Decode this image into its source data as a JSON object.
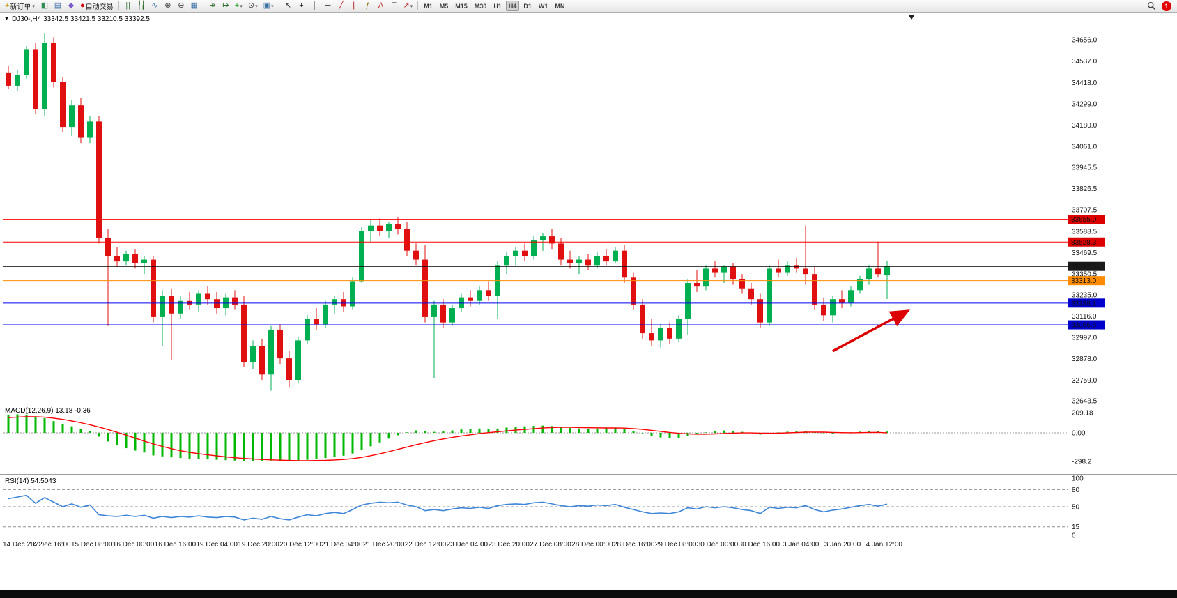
{
  "toolbar": {
    "groups": [
      {
        "items": [
          {
            "name": "new-order-button",
            "icon": "new-order-icon",
            "glyph": "+",
            "color": "#c79100",
            "label": "新订单",
            "dropdown": true
          },
          {
            "name": "charts-button",
            "icon": "chart-window-icon",
            "glyph": "◧",
            "color": "#2e8b57"
          },
          {
            "name": "profiles-button",
            "icon": "profiles-icon",
            "glyph": "▤",
            "color": "#3a6ea5"
          },
          {
            "name": "metaeditor-button",
            "icon": "metaeditor-icon",
            "glyph": "◆",
            "color": "#7b5cc6"
          },
          {
            "name": "autotrading-button",
            "icon": "autotrading-icon",
            "glyph": "●",
            "color": "#d40000",
            "label": "自动交易"
          }
        ]
      },
      {
        "items": [
          {
            "name": "bar-chart-button",
            "icon": "bar-chart-icon",
            "glyph": "|||",
            "color": "#4a7d4a"
          },
          {
            "name": "candlestick-chart-button",
            "icon": "candlestick-icon",
            "glyph": "╿╽",
            "color": "#2f6e2f"
          },
          {
            "name": "line-chart-button",
            "icon": "line-chart-icon",
            "glyph": "∿",
            "color": "#3a6ea5"
          },
          {
            "name": "zoom-in-button",
            "icon": "zoom-in-icon",
            "glyph": "⊕",
            "color": "#444444"
          },
          {
            "name": "zoom-out-button",
            "icon": "zoom-out-icon",
            "glyph": "⊖",
            "color": "#444444"
          },
          {
            "name": "tile-windows-button",
            "icon": "tile-windows-icon",
            "glyph": "▦",
            "color": "#3a6ea5"
          }
        ]
      },
      {
        "items": [
          {
            "name": "auto-scroll-button",
            "icon": "auto-scroll-icon",
            "glyph": "↠",
            "color": "#2f6e2f"
          },
          {
            "name": "chart-shift-button",
            "icon": "chart-shift-icon",
            "glyph": "↦",
            "color": "#2f6e2f"
          },
          {
            "name": "indicators-button",
            "icon": "indicators-icon",
            "glyph": "+",
            "color": "#0a9a0a",
            "dropdown": true
          },
          {
            "name": "periods-button",
            "icon": "clock-icon",
            "glyph": "⊙",
            "color": "#444444",
            "dropdown": true
          },
          {
            "name": "templates-button",
            "icon": "templates-icon",
            "glyph": "▣",
            "color": "#3a6ea5",
            "dropdown": true
          }
        ]
      },
      {
        "items": [
          {
            "name": "cursor-button",
            "icon": "cursor-icon",
            "glyph": "↖",
            "color": "#222222"
          },
          {
            "name": "crosshair-button",
            "icon": "crosshair-icon",
            "glyph": "+",
            "color": "#222222"
          },
          {
            "name": "vertical-line-button",
            "icon": "vertical-line-icon",
            "glyph": "│",
            "color": "#222222"
          },
          {
            "name": "horizontal-line-button",
            "icon": "horizontal-line-icon",
            "glyph": "─",
            "color": "#222222"
          },
          {
            "name": "trendline-button",
            "icon": "trendline-icon",
            "glyph": "╱",
            "color": "#bb2222"
          },
          {
            "name": "channel-button",
            "icon": "channel-icon",
            "glyph": "∥",
            "color": "#bb2222"
          },
          {
            "name": "fibonacci-button",
            "icon": "fibonacci-icon",
            "glyph": "ƒ",
            "color": "#8a6d00"
          },
          {
            "name": "text-button",
            "icon": "text-icon",
            "glyph": "A",
            "color": "#bb2222"
          },
          {
            "name": "text-label-button",
            "icon": "text-label-icon",
            "glyph": "T",
            "color": "#222222"
          },
          {
            "name": "arrows-button",
            "icon": "arrow-tools-icon",
            "glyph": "↗",
            "color": "#bb2222",
            "dropdown": true
          }
        ]
      },
      {
        "timeframes": true
      },
      {
        "align": "right",
        "items": [
          {
            "name": "search-button",
            "icon": "search-icon",
            "shape": "magnifier"
          },
          {
            "name": "notification-badge",
            "badge": true,
            "text": "1",
            "color": "#e00000"
          }
        ]
      }
    ],
    "timeframes": [
      "M1",
      "M5",
      "M15",
      "M30",
      "H1",
      "H4",
      "D1",
      "W1",
      "MN"
    ],
    "active_timeframe": "H4",
    "notification_count": "1"
  },
  "chart_data": {
    "type": "candlestick",
    "title_text": "DJ30-,H4  33342.5 33421.5 33210.5 33392.5",
    "symbol": "DJ30-",
    "period": "H4",
    "ohlc_display": [
      "33342.5",
      "33421.5",
      "33210.5",
      "33392.5"
    ],
    "ylim": [
      32643.5,
      34656.0
    ],
    "up_color": "#00b050",
    "down_color": "#e01010",
    "price_axis_ticks": [
      "34656.0",
      "34537.0",
      "34418.0",
      "34299.0",
      "34180.0",
      "34061.0",
      "33945.5",
      "33826.5",
      "33707.5",
      "33588.5",
      "33469.5",
      "33350.5",
      "33235.0",
      "33116.0",
      "32997.0",
      "32878.0",
      "32759.0",
      "32643.5"
    ],
    "time_labels": [
      "14 Dec 2022",
      "14 Dec 16:00",
      "15 Dec 08:00",
      "16 Dec 00:00",
      "16 Dec 16:00",
      "19 Dec 04:00",
      "19 Dec 20:00",
      "20 Dec 12:00",
      "21 Dec 04:00",
      "21 Dec 20:00",
      "22 Dec 12:00",
      "23 Dec 04:00",
      "23 Dec 20:00",
      "27 Dec 08:00",
      "28 Dec 00:00",
      "28 Dec 16:00",
      "29 Dec 08:00",
      "30 Dec 00:00",
      "30 Dec 16:00",
      "3 Jan 04:00",
      "3 Jan 20:00",
      "4 Jan 12:00"
    ],
    "hlines": [
      {
        "price": 33655.0,
        "color": "#ff0000",
        "label": "33655.0",
        "tag_bg": "#dd0000"
      },
      {
        "price": 33528.3,
        "color": "#ff0000",
        "label": "33528.3",
        "tag_bg": "#dd0000"
      },
      {
        "price": 33392.5,
        "color": "#000000",
        "label": "33392.5",
        "tag_bg": "#1a1a1a"
      },
      {
        "price": 33313.0,
        "color": "#ff8c00",
        "label": "33313.0",
        "tag_bg": "#ff8c00"
      },
      {
        "price": 33188.1,
        "color": "#0000ee",
        "label": "33188.1",
        "tag_bg": "#0000cc"
      },
      {
        "price": 33066.8,
        "color": "#0000ee",
        "label": "33066.8",
        "tag_bg": "#0000cc"
      }
    ],
    "candles": [
      [
        34470,
        34510,
        34380,
        34400
      ],
      [
        34400,
        34490,
        34370,
        34460
      ],
      [
        34460,
        34620,
        34440,
        34600
      ],
      [
        34600,
        34640,
        34240,
        34270
      ],
      [
        34270,
        34690,
        34230,
        34640
      ],
      [
        34640,
        34670,
        34390,
        34420
      ],
      [
        34420,
        34450,
        34140,
        34170
      ],
      [
        34170,
        34320,
        34120,
        34290
      ],
      [
        34290,
        34330,
        34080,
        34110
      ],
      [
        34110,
        34230,
        34080,
        34200
      ],
      [
        34200,
        34230,
        33520,
        33550
      ],
      [
        33550,
        33600,
        33060,
        33450
      ],
      [
        33450,
        33500,
        33390,
        33420
      ],
      [
        33420,
        33480,
        33400,
        33460
      ],
      [
        33460,
        33490,
        33380,
        33410
      ],
      [
        33410,
        33450,
        33350,
        33430
      ],
      [
        33430,
        33450,
        33080,
        33110
      ],
      [
        33110,
        33260,
        32950,
        33230
      ],
      [
        33230,
        33270,
        32870,
        33130
      ],
      [
        33130,
        33230,
        33100,
        33200
      ],
      [
        33200,
        33250,
        33150,
        33180
      ],
      [
        33180,
        33260,
        33140,
        33240
      ],
      [
        33240,
        33280,
        33180,
        33210
      ],
      [
        33210,
        33250,
        33130,
        33160
      ],
      [
        33160,
        33240,
        33120,
        33220
      ],
      [
        33220,
        33260,
        33150,
        33180
      ],
      [
        33180,
        33230,
        32830,
        32860
      ],
      [
        32860,
        32980,
        32820,
        32950
      ],
      [
        32950,
        32990,
        32760,
        32790
      ],
      [
        32790,
        33060,
        32700,
        33040
      ],
      [
        33040,
        33070,
        32850,
        32880
      ],
      [
        32880,
        32920,
        32720,
        32760
      ],
      [
        32760,
        33000,
        32740,
        32980
      ],
      [
        32980,
        33120,
        32960,
        33100
      ],
      [
        33100,
        33160,
        33040,
        33070
      ],
      [
        33070,
        33200,
        33050,
        33180
      ],
      [
        33180,
        33230,
        33130,
        33210
      ],
      [
        33210,
        33250,
        33140,
        33170
      ],
      [
        33170,
        33330,
        33150,
        33310
      ],
      [
        33310,
        33610,
        33300,
        33590
      ],
      [
        33590,
        33650,
        33530,
        33620
      ],
      [
        33620,
        33660,
        33560,
        33590
      ],
      [
        33590,
        33640,
        33550,
        33630
      ],
      [
        33630,
        33665,
        33570,
        33600
      ],
      [
        33600,
        33640,
        33450,
        33480
      ],
      [
        33480,
        33520,
        33400,
        33430
      ],
      [
        33430,
        33510,
        33080,
        33110
      ],
      [
        33110,
        33200,
        32770,
        33180
      ],
      [
        33180,
        33210,
        33050,
        33080
      ],
      [
        33080,
        33180,
        33060,
        33160
      ],
      [
        33160,
        33240,
        33140,
        33220
      ],
      [
        33220,
        33260,
        33170,
        33200
      ],
      [
        33200,
        33280,
        33180,
        33260
      ],
      [
        33260,
        33310,
        33200,
        33230
      ],
      [
        33230,
        33420,
        33100,
        33400
      ],
      [
        33400,
        33470,
        33350,
        33450
      ],
      [
        33450,
        33500,
        33400,
        33480
      ],
      [
        33480,
        33520,
        33420,
        33450
      ],
      [
        33450,
        33560,
        33430,
        33540
      ],
      [
        33540,
        33580,
        33480,
        33560
      ],
      [
        33560,
        33600,
        33490,
        33520
      ],
      [
        33520,
        33550,
        33400,
        33430
      ],
      [
        33430,
        33480,
        33380,
        33410
      ],
      [
        33410,
        33450,
        33350,
        33430
      ],
      [
        33430,
        33460,
        33370,
        33400
      ],
      [
        33400,
        33470,
        33380,
        33450
      ],
      [
        33450,
        33490,
        33400,
        33420
      ],
      [
        33420,
        33500,
        33410,
        33480
      ],
      [
        33480,
        33510,
        33300,
        33330
      ],
      [
        33330,
        33360,
        33150,
        33180
      ],
      [
        33180,
        33210,
        32990,
        33020
      ],
      [
        33020,
        33100,
        32950,
        32980
      ],
      [
        32980,
        33070,
        32940,
        33050
      ],
      [
        33050,
        33080,
        32960,
        32990
      ],
      [
        32990,
        33120,
        32970,
        33100
      ],
      [
        33100,
        33320,
        33010,
        33300
      ],
      [
        33300,
        33370,
        33250,
        33280
      ],
      [
        33280,
        33400,
        33260,
        33380
      ],
      [
        33380,
        33420,
        33330,
        33360
      ],
      [
        33360,
        33400,
        33300,
        33390
      ],
      [
        33390,
        33410,
        33290,
        33320
      ],
      [
        33320,
        33350,
        33240,
        33270
      ],
      [
        33270,
        33300,
        33180,
        33210
      ],
      [
        33210,
        33240,
        33050,
        33080
      ],
      [
        33080,
        33400,
        33060,
        33380
      ],
      [
        33380,
        33430,
        33330,
        33360
      ],
      [
        33360,
        33420,
        33340,
        33400
      ],
      [
        33400,
        33440,
        33360,
        33380
      ],
      [
        33380,
        33620,
        33290,
        33350
      ],
      [
        33350,
        33390,
        33150,
        33180
      ],
      [
        33180,
        33220,
        33090,
        33120
      ],
      [
        33120,
        33230,
        33080,
        33210
      ],
      [
        33210,
        33260,
        33160,
        33190
      ],
      [
        33190,
        33280,
        33170,
        33260
      ],
      [
        33260,
        33340,
        33240,
        33320
      ],
      [
        33320,
        33400,
        33290,
        33380
      ],
      [
        33380,
        33530,
        33330,
        33350
      ],
      [
        33342.5,
        33421.5,
        33210.5,
        33392.5
      ]
    ],
    "macd": {
      "label_text": "MACD(12,26,9) 13.18 -0.36",
      "hist_color": "#00b800",
      "signal_color": "#ff0000",
      "ticks": [
        {
          "v": 209.18,
          "label": "209.18"
        },
        {
          "v": 0,
          "label": "0.00"
        },
        {
          "v": -298.2,
          "label": "-298.2"
        }
      ],
      "hist": [
        185,
        192,
        186,
        170,
        152,
        122,
        92,
        68,
        42,
        18,
        -40,
        -90,
        -130,
        -160,
        -185,
        -205,
        -235,
        -245,
        -255,
        -262,
        -268,
        -272,
        -276,
        -280,
        -284,
        -288,
        -292,
        -290,
        -292,
        -288,
        -292,
        -296,
        -290,
        -280,
        -272,
        -262,
        -250,
        -238,
        -215,
        -180,
        -140,
        -100,
        -60,
        -25,
        5,
        25,
        20,
        10,
        15,
        25,
        35,
        40,
        45,
        40,
        45,
        55,
        62,
        68,
        72,
        75,
        70,
        60,
        50,
        45,
        42,
        45,
        48,
        52,
        40,
        20,
        -5,
        -30,
        -48,
        -55,
        -50,
        -35,
        -15,
        5,
        18,
        25,
        20,
        10,
        -2,
        -18,
        -8,
        5,
        12,
        18,
        22,
        8,
        -4,
        -8,
        -2,
        6,
        12,
        18,
        16,
        13.18
      ],
      "signal": [
        158,
        164,
        168,
        167,
        162,
        153,
        140,
        124,
        105,
        84,
        60,
        34,
        6,
        -24,
        -55,
        -86,
        -115,
        -141,
        -165,
        -186,
        -203,
        -217,
        -229,
        -240,
        -250,
        -259,
        -266,
        -272,
        -277,
        -281,
        -284,
        -287,
        -289,
        -289,
        -288,
        -286,
        -282,
        -277,
        -268,
        -255,
        -238,
        -218,
        -196,
        -172,
        -148,
        -124,
        -102,
        -82,
        -64,
        -48,
        -33,
        -20,
        -8,
        2,
        11,
        20,
        28,
        36,
        43,
        50,
        55,
        57,
        57,
        55,
        53,
        52,
        51,
        51,
        49,
        44,
        36,
        26,
        15,
        4,
        -5,
        -11,
        -14,
        -14,
        -11,
        -7,
        -3,
        -1,
        -1,
        -3,
        -4,
        -3,
        0,
        3,
        7,
        8,
        7,
        4,
        2,
        1,
        2,
        4,
        5,
        -0.36
      ]
    },
    "rsi": {
      "label_text": "RSI(14) 54.5043",
      "line_color": "#3e86d8",
      "levels": [
        80,
        50,
        15
      ],
      "ticks": [
        {
          "v": 100,
          "label": "100"
        },
        {
          "v": 80,
          "label": "80"
        },
        {
          "v": 50,
          "label": "50"
        },
        {
          "v": 15,
          "label": "15"
        },
        {
          "v": 0,
          "label": "0"
        }
      ],
      "values": [
        64,
        67,
        70,
        56,
        66,
        58,
        50,
        55,
        49,
        53,
        36,
        34,
        33,
        35,
        33,
        35,
        30,
        33,
        31,
        33,
        32,
        34,
        32,
        31,
        33,
        32,
        27,
        30,
        28,
        33,
        29,
        27,
        32,
        36,
        34,
        38,
        40,
        38,
        45,
        53,
        56,
        58,
        57,
        58,
        53,
        50,
        43,
        45,
        43,
        46,
        48,
        47,
        49,
        47,
        52,
        54,
        55,
        54,
        57,
        58,
        55,
        52,
        50,
        52,
        51,
        53,
        52,
        54,
        49,
        45,
        41,
        38,
        39,
        38,
        41,
        48,
        46,
        50,
        48,
        50,
        48,
        45,
        43,
        38,
        49,
        47,
        49,
        48,
        52,
        45,
        41,
        44,
        46,
        49,
        52,
        54,
        51,
        54.5
      ]
    },
    "annotation_arrow": {
      "from": {
        "i": 91,
        "p": 32920
      },
      "to": {
        "i": 99.3,
        "p": 33145
      },
      "color": "#dd0000"
    }
  }
}
